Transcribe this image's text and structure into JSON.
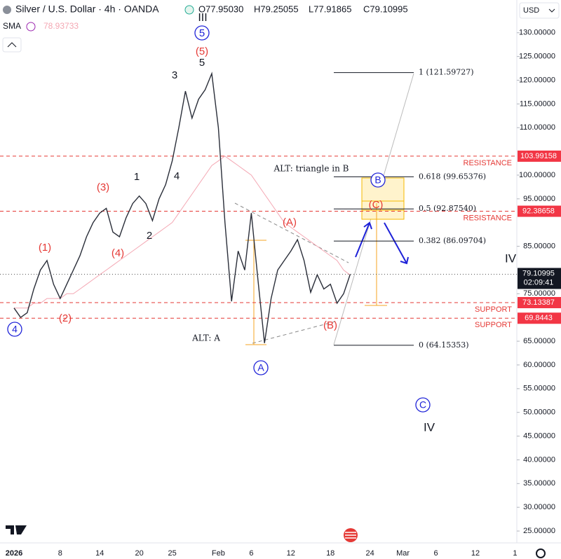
{
  "header": {
    "open": "O77.95030",
    "high": "H79.25055",
    "low": "L77.91865",
    "close": "C79.10995",
    "currency": "USD",
    "countdown": "02:09:41"
  },
  "chart_data": {
    "type": "line",
    "categories": [
      "2026",
      null,
      null,
      null,
      null,
      null,
      null,
      "8",
      null,
      null,
      null,
      null,
      null,
      "14",
      null,
      null,
      null,
      null,
      null,
      "20",
      null,
      null,
      null,
      null,
      "25",
      null,
      null,
      null,
      null,
      null,
      null,
      "Feb",
      null,
      null,
      null,
      null,
      "6",
      null,
      null,
      null,
      null,
      null,
      "12",
      null,
      null,
      null,
      null,
      null,
      "18",
      null,
      null,
      null,
      null,
      null,
      "24",
      null,
      null,
      null,
      null,
      "Mar",
      null,
      null,
      null,
      null,
      "6",
      null,
      null,
      null,
      null,
      null,
      "12",
      null,
      null,
      null,
      null,
      null,
      "1",
      null
    ],
    "series": [
      {
        "name": "Silver / U.S. Dollar · 4h · OANDA",
        "color": "#2a2e39",
        "values": [
          72,
          70,
          71,
          76,
          80,
          82,
          77,
          74,
          77,
          80,
          83,
          87,
          90,
          92,
          93,
          88,
          87,
          91,
          94,
          95.6,
          94,
          90.4,
          95,
          98,
          103,
          110,
          117.7,
          112,
          116,
          118,
          121.4,
          110,
          90,
          73.4,
          84,
          80,
          92,
          78,
          64.6,
          74,
          80,
          82,
          84,
          86.4,
          82,
          75.3,
          79,
          76,
          77,
          73,
          75,
          79.10995,
          null,
          null,
          null,
          null,
          null,
          null,
          null,
          null,
          null,
          null,
          null,
          null,
          null,
          null,
          null,
          null,
          null,
          null,
          null,
          null,
          null,
          null,
          null,
          null,
          null,
          null
        ]
      },
      {
        "name": "SMA",
        "color": "#f4a7b3",
        "values": [
          72,
          72,
          72,
          73,
          73,
          74,
          74,
          74,
          75,
          75,
          76,
          77,
          78,
          79,
          80,
          81,
          82,
          83,
          84,
          85,
          86,
          87,
          88,
          89,
          90,
          92,
          94,
          96,
          98,
          100,
          102,
          103,
          104,
          103,
          102,
          101,
          100,
          98,
          96,
          94,
          92,
          90,
          89,
          88,
          87,
          86,
          85,
          84,
          83,
          82,
          80,
          78.93733,
          null,
          null,
          null,
          null,
          null,
          null,
          null,
          null,
          null,
          null,
          null,
          null,
          null,
          null,
          null,
          null,
          null,
          null,
          null,
          null,
          null,
          null,
          null,
          null,
          null,
          null
        ]
      }
    ],
    "ylim": [
      22.5,
      136.9
    ],
    "yticks": [
      {
        "value": 25,
        "label": "25.00000"
      },
      {
        "value": 30,
        "label": "30.00000"
      },
      {
        "value": 35,
        "label": "35.00000"
      },
      {
        "value": 40,
        "label": "40.00000"
      },
      {
        "value": 45,
        "label": "45.00000"
      },
      {
        "value": 50,
        "label": "50.00000"
      },
      {
        "value": 55,
        "label": "55.00000"
      },
      {
        "value": 60,
        "label": "60.00000"
      },
      {
        "value": 65,
        "label": "65.00000"
      },
      {
        "value": 75,
        "label": "75.00000"
      },
      {
        "value": 85,
        "label": "85.00000"
      },
      {
        "value": 95,
        "label": "95.00000"
      },
      {
        "value": 100,
        "label": "100.00000"
      },
      {
        "value": 110,
        "label": "110.00000"
      },
      {
        "value": 115,
        "label": "115.00000"
      },
      {
        "value": 120,
        "label": "120.00000"
      },
      {
        "value": 125,
        "label": "125.00000"
      },
      {
        "value": 130,
        "label": "130.00000"
      }
    ],
    "grid": false,
    "levels": [
      {
        "value": 103.99158,
        "label": "RESISTANCE"
      },
      {
        "value": 92.38658,
        "label": "RESISTANCE"
      },
      {
        "value": 73.13387,
        "label": "SUPPORT"
      },
      {
        "value": 69.8443,
        "label": "SUPPORT"
      }
    ],
    "fib": [
      {
        "value": 121.59727,
        "label": "1 (121.59727)"
      },
      {
        "value": 99.65376,
        "label": "0.618 (99.65376)"
      },
      {
        "value": 92.8754,
        "label": "0.5 (92.87540)"
      },
      {
        "value": 86.09704,
        "label": "0.382 (86.09704)"
      },
      {
        "value": 64.15353,
        "label": "0 (64.15353)"
      }
    ],
    "annotations": [
      "III",
      "5",
      "(5)",
      "5",
      "3",
      "1",
      "4",
      "2",
      "(3)",
      "(4)",
      "(1)",
      "(2)",
      "4",
      "(A)",
      "(B)",
      "(C)",
      "B",
      "A",
      "C",
      "IV",
      "IV",
      "ALT: triangle in B",
      "ALT: A"
    ]
  }
}
